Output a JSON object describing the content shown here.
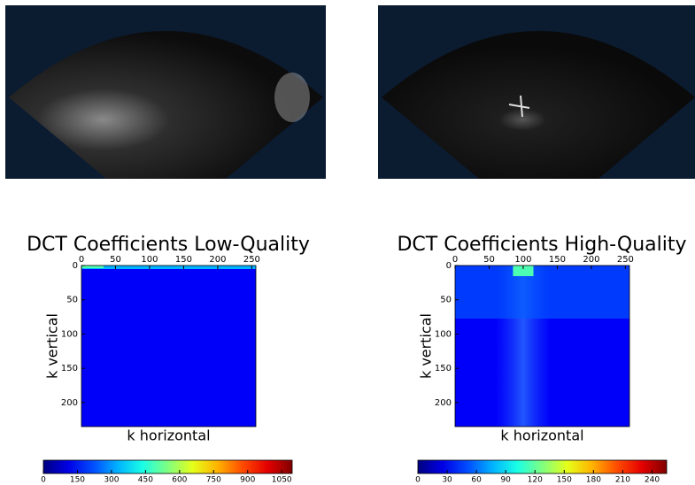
{
  "chart_data": [
    {
      "type": "heatmap",
      "title": "DCT Coefficients Low-Quality",
      "xlabel": "k horizontal",
      "ylabel": "k vertical",
      "xlim": [
        0,
        256
      ],
      "xticks": [
        0,
        50,
        100,
        150,
        200,
        250
      ],
      "ylim": [
        0,
        235
      ],
      "yticks": [
        0,
        50,
        100,
        150,
        200
      ],
      "colormap": "jet",
      "colorbar": {
        "lim": [
          0,
          1096
        ],
        "ticks": [
          0,
          150,
          300,
          450,
          600,
          750,
          900,
          1050
        ]
      }
    },
    {
      "type": "heatmap",
      "title": "DCT Coefficients High-Quality",
      "xlabel": "k horizontal",
      "ylabel": "k vertical",
      "xlim": [
        0,
        256
      ],
      "xticks": [
        0,
        50,
        100,
        150,
        200,
        250
      ],
      "ylim": [
        0,
        235
      ],
      "yticks": [
        0,
        50,
        100,
        150,
        200
      ],
      "colormap": "jet",
      "colorbar": {
        "lim": [
          0,
          255
        ],
        "ticks": [
          0,
          30,
          60,
          90,
          120,
          150,
          180,
          210,
          240
        ]
      }
    }
  ]
}
